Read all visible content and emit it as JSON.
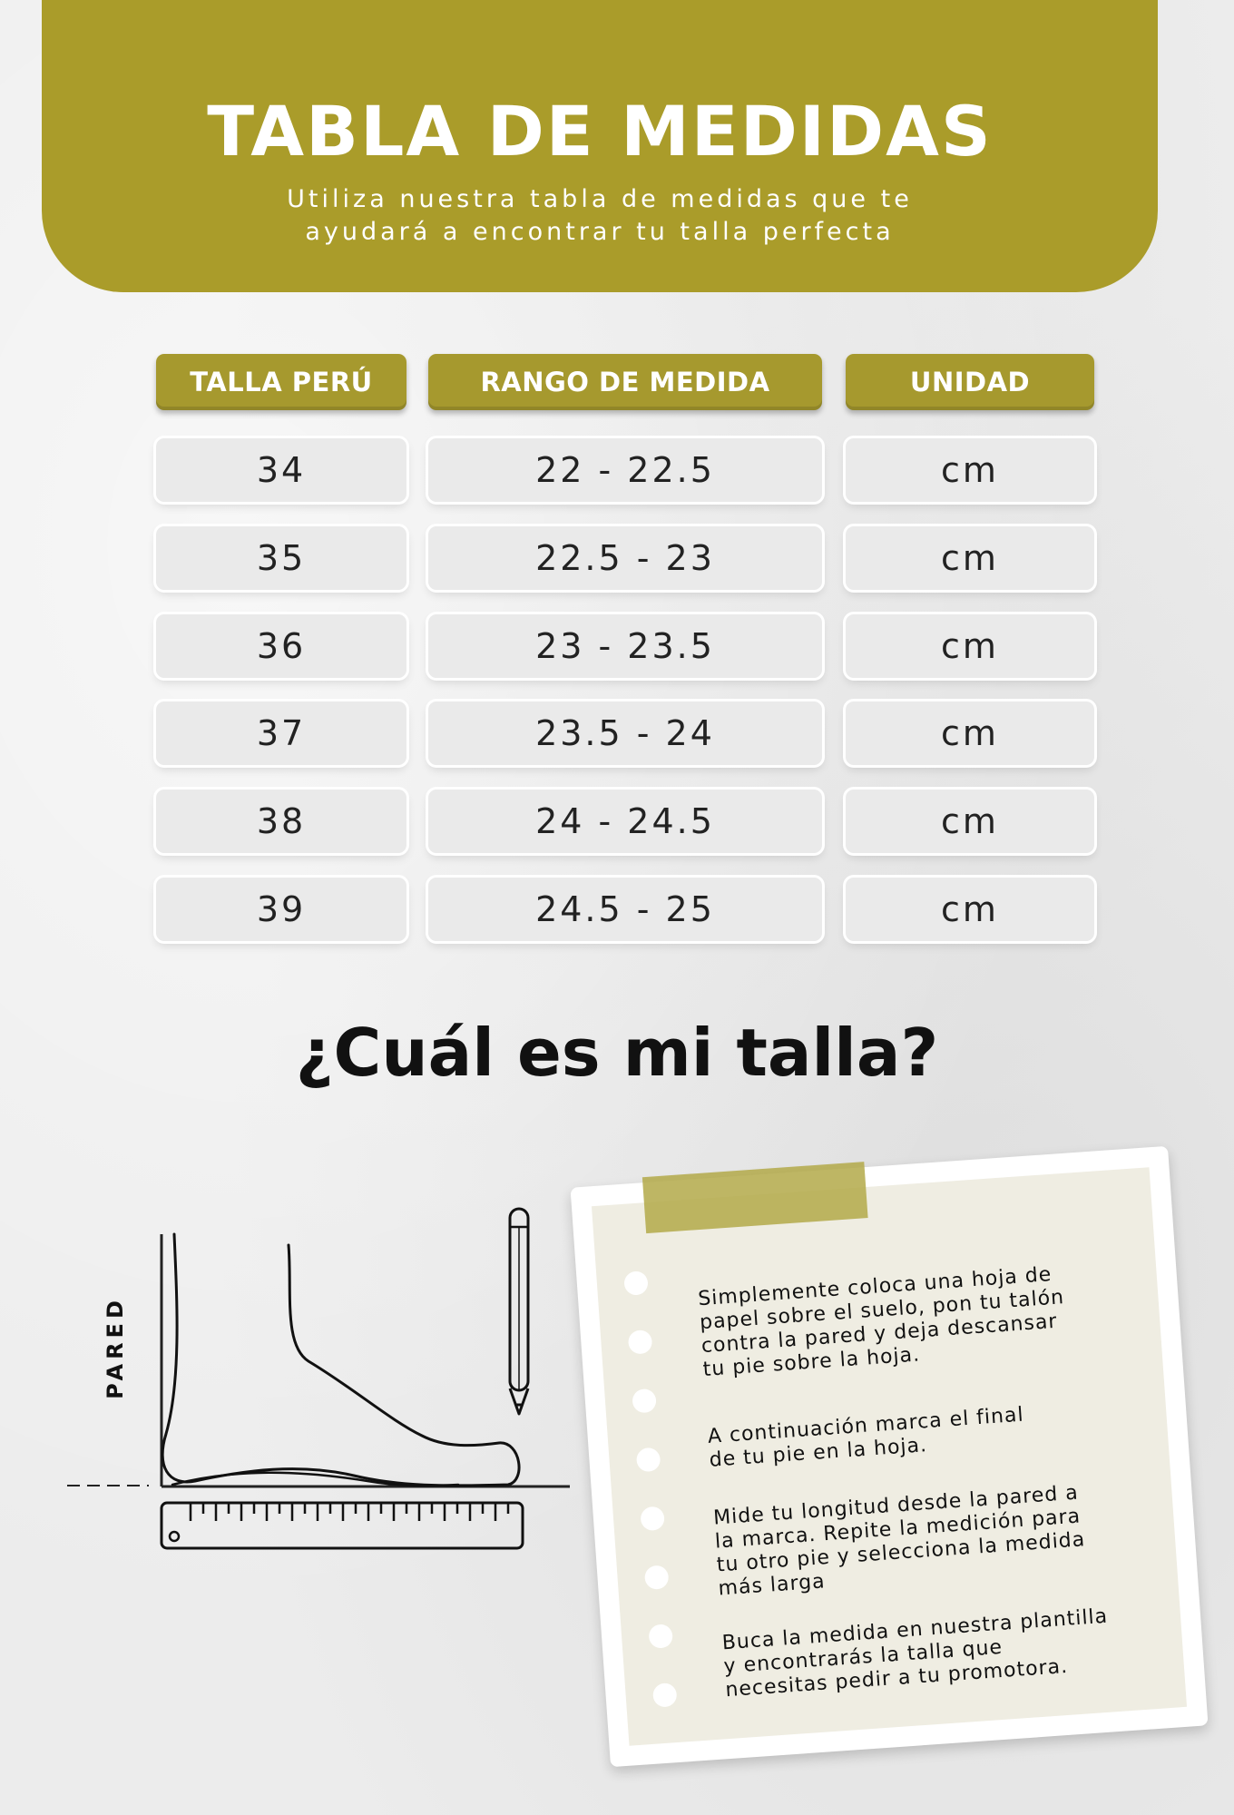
{
  "header": {
    "title": "TABLA DE MEDIDAS",
    "subtitle_line1": "Utiliza nuestra tabla de medidas que te",
    "subtitle_line2": "ayudará a encontrar tu talla perfecta",
    "color": "#aa9c2a"
  },
  "table": {
    "columns": [
      "TALLA PERÚ",
      "RANGO DE MEDIDA",
      "UNIDAD"
    ],
    "rows": [
      {
        "talla": "34",
        "rango": "22 - 22.5",
        "unidad": "cm"
      },
      {
        "talla": "35",
        "rango": "22.5 - 23",
        "unidad": "cm"
      },
      {
        "talla": "36",
        "rango": "23 - 23.5",
        "unidad": "cm"
      },
      {
        "talla": "37",
        "rango": "23.5 - 24",
        "unidad": "cm"
      },
      {
        "talla": "38",
        "rango": "24 - 24.5",
        "unidad": "cm"
      },
      {
        "talla": "39",
        "rango": "24.5 - 25",
        "unidad": "cm"
      }
    ]
  },
  "question": "¿Cuál es mi talla?",
  "diagram": {
    "wall_label": "PARED",
    "icons": [
      "foot-outline-icon",
      "pencil-icon",
      "ruler-icon"
    ]
  },
  "instructions": [
    {
      "lines": [
        "Simplemente coloca una hoja de",
        "papel sobre el suelo, pon tu talón",
        "contra la pared y deja descansar",
        "tu pie sobre la hoja."
      ]
    },
    {
      "lines": [
        "A continuación marca el final",
        "de tu pie en la hoja."
      ]
    },
    {
      "lines": [
        "Mide tu longitud desde la pared a",
        "la marca. Repite la medición para",
        "tu otro pie y selecciona la medida",
        "más larga"
      ]
    },
    {
      "lines": [
        "Buca la medida en nuestra plantilla",
        "y encontrarás la talla que",
        "necesitas pedir a tu promotora."
      ]
    }
  ]
}
